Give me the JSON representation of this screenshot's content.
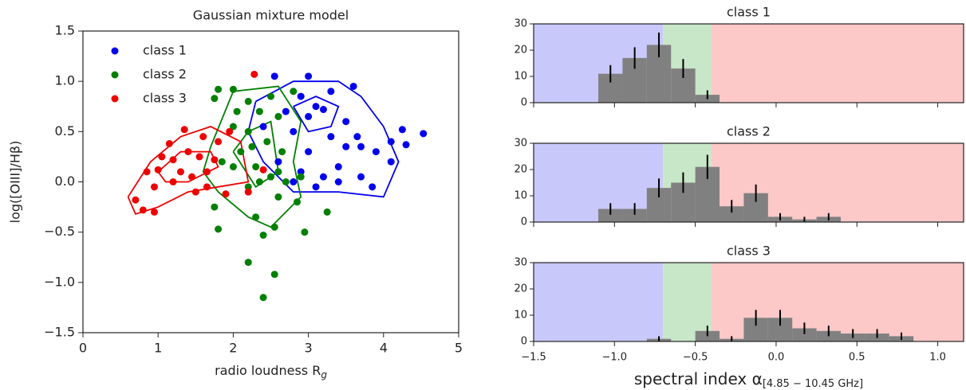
{
  "chart_data": [
    {
      "type": "scatter",
      "title": "Gaussian mixture model",
      "xlabel": "radio loudness R",
      "xlabel_sub": "g",
      "ylabel": "log([OIII]/Hβ)",
      "xlim": [
        0,
        5
      ],
      "ylim": [
        -1.5,
        1.5
      ],
      "xticks": [
        0,
        1,
        2,
        3,
        4,
        5
      ],
      "yticks": [
        {
          "value": -1.5,
          "label": "−1.5"
        },
        {
          "value": -1.0,
          "label": "−1.0"
        },
        {
          "value": -0.5,
          "label": "−0.5"
        },
        {
          "value": 0,
          "label": "0.0"
        },
        {
          "value": 0.5,
          "label": "0.5"
        },
        {
          "value": 1.0,
          "label": "1.0"
        },
        {
          "value": 1.5,
          "label": "1.5"
        }
      ],
      "legend": "upper left",
      "series": [
        {
          "name": "class 1",
          "color": "#0000ee",
          "x": [
            3.0,
            2.55,
            3.6,
            3.3,
            2.9,
            3.1,
            3.2,
            2.7,
            3.0,
            3.5,
            2.4,
            2.8,
            3.3,
            3.65,
            4.25,
            4.1,
            4.53,
            4.3,
            3.9,
            3.5,
            3.7,
            4.1,
            3.4,
            2.9,
            3.2,
            3.4,
            3.7,
            2.8,
            3.1,
            3.85,
            2.6,
            3.0
          ],
          "y": [
            1.05,
            1.05,
            0.95,
            0.9,
            0.85,
            0.75,
            0.72,
            0.7,
            0.65,
            0.6,
            0.55,
            0.5,
            0.45,
            0.45,
            0.52,
            0.4,
            0.48,
            0.37,
            0.3,
            0.35,
            0.35,
            0.2,
            0.15,
            0.1,
            0.05,
            0.0,
            0.05,
            0.0,
            -0.05,
            -0.05,
            0.2,
            0.3
          ]
        },
        {
          "name": "class 2",
          "color": "#008000",
          "x": [
            1.8,
            1.75,
            2.0,
            2.2,
            2.5,
            2.05,
            2.35,
            2.6,
            2.8,
            2.0,
            2.2,
            2.45,
            2.65,
            2.25,
            2.1,
            1.85,
            2.0,
            2.3,
            2.6,
            2.5,
            2.35,
            2.7,
            2.9,
            2.2,
            1.75,
            2.6,
            2.85,
            2.3,
            3.25,
            1.8,
            2.55,
            2.95,
            2.4,
            2.2,
            2.55,
            2.4
          ],
          "y": [
            0.92,
            0.83,
            0.92,
            0.8,
            0.85,
            0.7,
            0.7,
            0.65,
            0.9,
            0.55,
            0.5,
            0.4,
            0.3,
            0.35,
            0.3,
            0.2,
            0.15,
            0.15,
            0.1,
            0.05,
            0.0,
            0.0,
            0.05,
            -0.05,
            -0.25,
            -0.15,
            -0.2,
            -0.35,
            -0.3,
            -0.47,
            -0.45,
            -0.5,
            -0.53,
            -0.8,
            -0.92,
            -1.15
          ]
        },
        {
          "name": "class 3",
          "color": "#ee0000",
          "x": [
            2.28,
            1.35,
            1.15,
            1.6,
            1.8,
            1.95,
            1.4,
            1.05,
            1.2,
            1.55,
            1.75,
            0.85,
            1.0,
            1.3,
            1.45,
            1.65,
            1.2,
            0.95,
            1.5,
            0.7,
            0.8,
            0.95,
            1.65,
            2.2,
            2.4,
            1.9
          ],
          "y": [
            1.07,
            0.52,
            0.38,
            0.45,
            0.4,
            0.5,
            0.3,
            0.25,
            0.22,
            0.25,
            0.22,
            0.1,
            0.12,
            0.1,
            0.05,
            0.1,
            0.0,
            -0.05,
            -0.1,
            -0.18,
            -0.28,
            -0.3,
            -0.05,
            -0.1,
            0.12,
            -0.12
          ]
        }
      ],
      "contours": [
        {
          "color": "#0000ee",
          "x": [
            2.3,
            2.8,
            3.4,
            3.7,
            4.0,
            4.2,
            4.0,
            3.4,
            2.8,
            2.4,
            2.2,
            2.3
          ],
          "y": [
            0.8,
            1.0,
            1.0,
            0.85,
            0.55,
            0.2,
            -0.15,
            -0.1,
            -0.1,
            0.2,
            0.5,
            0.8
          ]
        },
        {
          "color": "#0000ee",
          "x": [
            2.8,
            3.1,
            3.4,
            3.3,
            3.0,
            2.8
          ],
          "y": [
            0.75,
            0.85,
            0.75,
            0.55,
            0.5,
            0.75
          ]
        },
        {
          "color": "#008000",
          "x": [
            1.7,
            2.0,
            2.6,
            2.9,
            2.8,
            2.9,
            2.5,
            2.2,
            1.8,
            1.6,
            1.7
          ],
          "y": [
            0.35,
            0.9,
            0.95,
            0.6,
            0.2,
            -0.15,
            -0.45,
            -0.35,
            -0.1,
            0.1,
            0.35
          ]
        },
        {
          "color": "#008000",
          "x": [
            2.0,
            2.2,
            2.5,
            2.6,
            2.3,
            2.0
          ],
          "y": [
            0.3,
            0.5,
            0.6,
            0.1,
            -0.05,
            0.3
          ]
        },
        {
          "color": "#ee0000",
          "x": [
            0.6,
            0.9,
            1.3,
            1.7,
            2.1,
            2.2,
            1.8,
            1.4,
            1.0,
            0.7,
            0.6
          ],
          "y": [
            -0.15,
            0.2,
            0.45,
            0.55,
            0.4,
            0.0,
            -0.05,
            -0.1,
            -0.25,
            -0.32,
            -0.15
          ]
        },
        {
          "color": "#ee0000",
          "x": [
            1.0,
            1.3,
            1.7,
            1.8,
            1.4,
            1.1,
            1.0
          ],
          "y": [
            0.1,
            0.3,
            0.3,
            0.15,
            0.0,
            0.0,
            0.1
          ]
        }
      ]
    },
    {
      "type": "histogram",
      "title": "class 1",
      "color": "#808080",
      "bins": [
        -1.1,
        -0.95,
        -0.8,
        -0.65,
        -0.5,
        -0.35
      ],
      "values": [
        11,
        17,
        22,
        13,
        3
      ],
      "errors": [
        3.3,
        4.1,
        4.7,
        3.6,
        1.7
      ],
      "xlim": [
        -1.5,
        1.16
      ],
      "ylim": [
        0,
        30
      ],
      "yticks": [
        0,
        10,
        20,
        30
      ],
      "xticks": [
        -1.5,
        -1.0,
        -0.5,
        0,
        0.5,
        1.0
      ],
      "regions": [
        {
          "range": [
            -1.5,
            -0.7
          ],
          "color": "#c8c8fa"
        },
        {
          "range": [
            -0.7,
            -0.4
          ],
          "color": "#c8e6c8"
        },
        {
          "range": [
            -0.4,
            1.16
          ],
          "color": "#fcc8c8"
        }
      ]
    },
    {
      "type": "histogram",
      "title": "class 2",
      "color": "#808080",
      "bins": [
        -1.1,
        -0.95,
        -0.8,
        -0.65,
        -0.5,
        -0.35,
        -0.2,
        -0.05,
        0.1,
        0.25,
        0.4
      ],
      "values": [
        5,
        5,
        13,
        15,
        21,
        6,
        11,
        2,
        1,
        2
      ],
      "errors": [
        2.2,
        2.2,
        3.6,
        3.9,
        4.6,
        2.4,
        3.3,
        1.4,
        1,
        1.4
      ],
      "xlim": [
        -1.5,
        1.16
      ],
      "ylim": [
        0,
        30
      ],
      "yticks": [
        0,
        10,
        20,
        30
      ],
      "xticks": [
        -1.5,
        -1.0,
        -0.5,
        0,
        0.5,
        1.0
      ],
      "regions": [
        {
          "range": [
            -1.5,
            -0.7
          ],
          "color": "#c8c8fa"
        },
        {
          "range": [
            -0.7,
            -0.4
          ],
          "color": "#c8e6c8"
        },
        {
          "range": [
            -0.4,
            1.16
          ],
          "color": "#fcc8c8"
        }
      ]
    },
    {
      "type": "histogram",
      "title": "class 3",
      "color": "#808080",
      "xlabel": "spectral index α",
      "xlabel_sub": "[4.85 − 10.45 GHz]",
      "bins": [
        -0.8,
        -0.65,
        -0.5,
        -0.35,
        -0.2,
        -0.05,
        0.1,
        0.25,
        0.4,
        0.55,
        0.7,
        0.85
      ],
      "values": [
        1,
        0,
        4,
        1,
        9,
        9,
        5,
        4,
        3,
        3,
        2
      ],
      "errors": [
        1,
        0,
        2,
        1,
        3,
        3,
        2.2,
        2,
        1.7,
        1.7,
        1.4
      ],
      "xlim": [
        -1.5,
        1.16
      ],
      "ylim": [
        0,
        30
      ],
      "yticks": [
        0,
        10,
        20,
        30
      ],
      "xticks": [
        {
          "value": -1.5,
          "label": "−1.5"
        },
        {
          "value": -1.0,
          "label": "−1.0"
        },
        {
          "value": -0.5,
          "label": "−0.5"
        },
        {
          "value": 0,
          "label": "0.0"
        },
        {
          "value": 0.5,
          "label": "0.5"
        },
        {
          "value": 1.0,
          "label": "1.0"
        }
      ],
      "regions": [
        {
          "range": [
            -1.5,
            -0.7
          ],
          "color": "#c8c8fa"
        },
        {
          "range": [
            -0.7,
            -0.4
          ],
          "color": "#c8e6c8"
        },
        {
          "range": [
            -0.4,
            1.16
          ],
          "color": "#fcc8c8"
        }
      ]
    }
  ]
}
